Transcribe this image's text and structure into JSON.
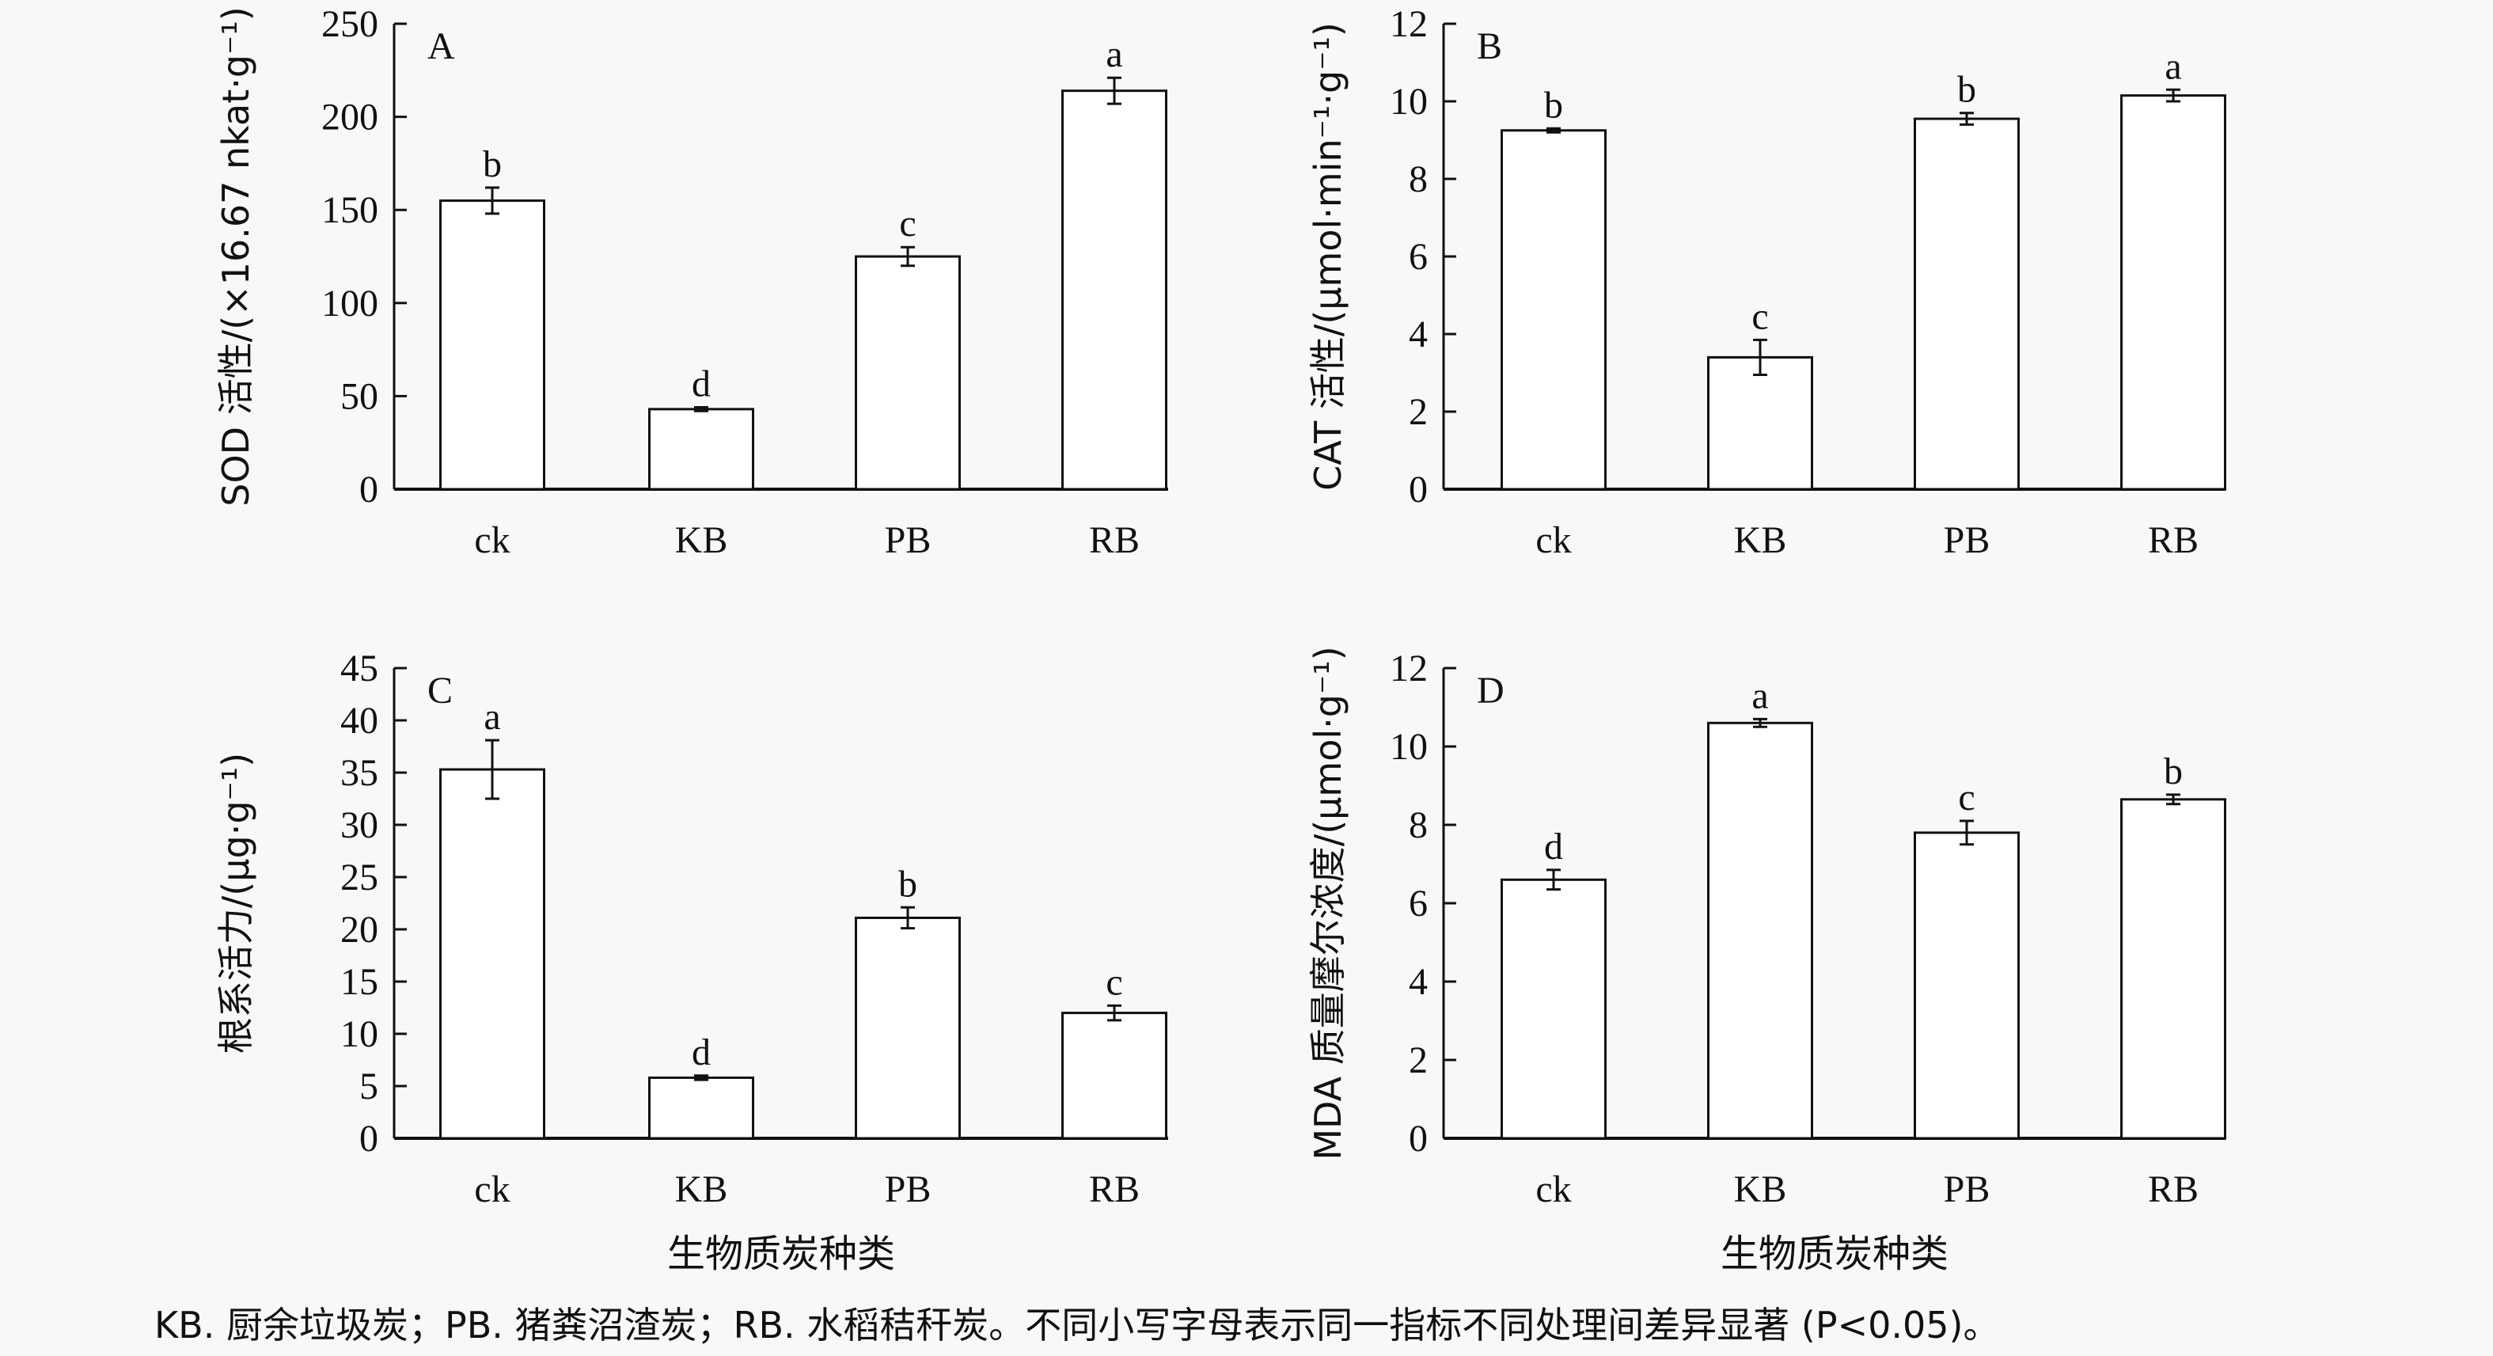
{
  "chart_data": [
    {
      "type": "bar",
      "panel": "A",
      "categories": [
        "ck",
        "KB",
        "PB",
        "RB"
      ],
      "values": [
        155,
        43,
        125,
        214
      ],
      "errors": [
        7,
        1,
        5,
        7
      ],
      "letters": [
        "b",
        "d",
        "c",
        "a"
      ],
      "ylabel": "SOD 活性/(×16.67 nkat·g⁻¹)",
      "xlabel": "",
      "ylim": [
        0,
        250
      ],
      "yticks": [
        0,
        50,
        100,
        150,
        200,
        250
      ]
    },
    {
      "type": "bar",
      "panel": "B",
      "categories": [
        "ck",
        "KB",
        "PB",
        "RB"
      ],
      "values": [
        9.25,
        3.4,
        9.55,
        10.15
      ],
      "errors": [
        0.05,
        0.45,
        0.15,
        0.15
      ],
      "letters": [
        "b",
        "c",
        "b",
        "a"
      ],
      "ylabel": "CAT 活性/(μmol·min⁻¹·g⁻¹)",
      "xlabel": "",
      "ylim": [
        0,
        12
      ],
      "yticks": [
        0,
        2,
        4,
        6,
        8,
        10,
        12
      ]
    },
    {
      "type": "bar",
      "panel": "C",
      "categories": [
        "ck",
        "KB",
        "PB",
        "RB"
      ],
      "values": [
        35.3,
        5.8,
        21.1,
        12.0
      ],
      "errors": [
        2.8,
        0.2,
        1.0,
        0.7
      ],
      "letters": [
        "a",
        "d",
        "b",
        "c"
      ],
      "ylabel": "根系活力/(μg·g⁻¹)",
      "xlabel": "生物质炭种类",
      "ylim": [
        0,
        45
      ],
      "yticks": [
        0,
        5,
        10,
        15,
        20,
        25,
        30,
        35,
        40,
        45
      ]
    },
    {
      "type": "bar",
      "panel": "D",
      "categories": [
        "ck",
        "KB",
        "PB",
        "RB"
      ],
      "values": [
        6.6,
        10.6,
        7.8,
        8.65
      ],
      "errors": [
        0.25,
        0.1,
        0.3,
        0.12
      ],
      "letters": [
        "d",
        "a",
        "c",
        "b"
      ],
      "ylabel": "MDA 质量摩尔浓度/(μmol·g⁻¹)",
      "xlabel": "生物质炭种类",
      "ylim": [
        0,
        12
      ],
      "yticks": [
        0,
        2,
        4,
        6,
        8,
        10,
        12
      ]
    }
  ],
  "caption": "KB. 厨余垃圾炭；PB. 猪粪沼渣炭；RB. 水稻秸秆炭。不同小写字母表示同一指标不同处理间差异显著 (P<0.05)。",
  "colors": {
    "bar_fill": "#ffffff",
    "stroke": "#111111",
    "background": "#f8f8f8"
  }
}
